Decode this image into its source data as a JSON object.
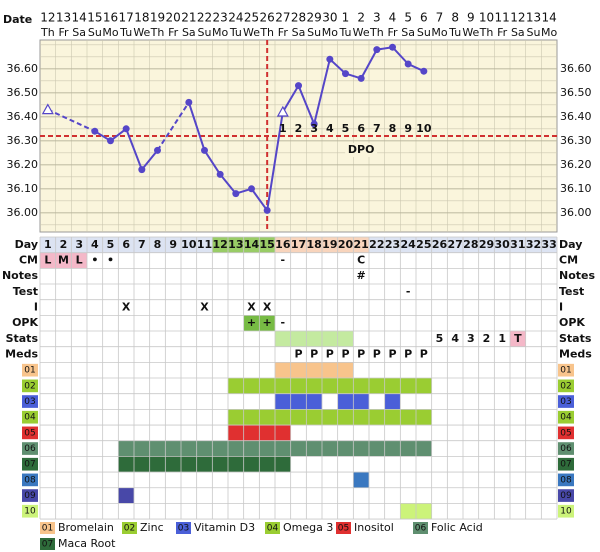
{
  "chart_data": {
    "type": "line",
    "date_label": "Date",
    "dates": [
      12,
      13,
      14,
      15,
      16,
      17,
      18,
      19,
      20,
      21,
      22,
      23,
      24,
      25,
      26,
      27,
      28,
      29,
      30,
      1,
      2,
      3,
      4,
      5,
      6,
      7,
      8,
      9,
      10,
      11,
      12,
      13,
      14
    ],
    "weekdays": [
      "Th",
      "Fr",
      "Sa",
      "Su",
      "Mo",
      "Tu",
      "We",
      "Th",
      "Fr",
      "Sa",
      "Su",
      "Mo",
      "Tu",
      "We",
      "Th",
      "Fr",
      "Sa",
      "Su",
      "Mo",
      "Tu",
      "We",
      "Th",
      "Fr",
      "Sa",
      "Su",
      "Mo",
      "Tu",
      "We",
      "Th",
      "Fr",
      "Sa",
      "Su",
      "Mo"
    ],
    "values": [
      36.43,
      null,
      null,
      36.34,
      36.3,
      36.35,
      36.18,
      36.26,
      null,
      36.46,
      36.26,
      36.16,
      36.08,
      36.1,
      36.01,
      36.42,
      36.53,
      36.37,
      36.64,
      36.58,
      36.56,
      36.68,
      36.69,
      36.62,
      36.59,
      null,
      null,
      null,
      null,
      null,
      null,
      null,
      null
    ],
    "markers": [
      "triangle",
      null,
      null,
      "circle",
      "circle",
      "circle",
      "circle",
      "circle",
      null,
      "circle",
      "circle",
      "circle",
      "circle",
      "circle",
      "circle",
      "triangle",
      "circle",
      "circle",
      "circle",
      "circle",
      "circle",
      "circle",
      "circle",
      "circle",
      "circle",
      null,
      null,
      null,
      null,
      null,
      null,
      null,
      null
    ],
    "color": "#5546c8",
    "background": "#faf5dc",
    "grid": true,
    "ylim": [
      35.92,
      36.72
    ],
    "yticks": [
      {
        "value": 36.0,
        "label": "36.00"
      },
      {
        "value": 36.1,
        "label": "36.10"
      },
      {
        "value": 36.2,
        "label": "36.20"
      },
      {
        "value": 36.3,
        "label": "36.30"
      },
      {
        "value": 36.4,
        "label": "36.40"
      },
      {
        "value": 36.5,
        "label": "36.50"
      },
      {
        "value": 36.6,
        "label": "36.60"
      }
    ],
    "minor_step": 0.05,
    "coverline": 36.32,
    "ovulation_day": 15,
    "line_color": "#d03030",
    "dpo_label": "DPO",
    "dpo": [
      {
        "day": 16,
        "text": 1
      },
      {
        "day": 17,
        "text": 2
      },
      {
        "day": 18,
        "text": 3
      },
      {
        "day": 19,
        "text": 4
      },
      {
        "day": 20,
        "text": 5
      },
      {
        "day": 21,
        "text": 6
      },
      {
        "day": 22,
        "text": 7
      },
      {
        "day": 23,
        "text": 8
      },
      {
        "day": 24,
        "text": 9
      },
      {
        "day": 25,
        "text": 10
      }
    ]
  },
  "grid": {
    "day_label": "Day",
    "days": [
      1,
      2,
      3,
      4,
      5,
      6,
      7,
      8,
      9,
      10,
      11,
      12,
      13,
      14,
      15,
      16,
      17,
      18,
      19,
      20,
      21,
      22,
      23,
      24,
      25,
      26,
      27,
      28,
      29,
      30,
      31,
      32,
      33
    ],
    "day_bg": "#dce3f2",
    "day_highlights": [
      {
        "days": [
          12,
          13,
          14,
          15
        ],
        "color": "#99cc66"
      },
      {
        "days": [
          16,
          17,
          18,
          19,
          20,
          21
        ],
        "color": "#f8d4bc"
      }
    ],
    "rows": [
      {
        "label": "CM",
        "entries": [
          {
            "day": 1,
            "text": "L",
            "bg": "#f4b8c8"
          },
          {
            "day": 2,
            "text": "M",
            "bg": "#f4b8c8"
          },
          {
            "day": 3,
            "text": "L",
            "bg": "#f4b8c8"
          },
          {
            "day": 4,
            "text": "•"
          },
          {
            "day": 5,
            "text": "•"
          },
          {
            "day": 16,
            "text": "-"
          },
          {
            "day": 21,
            "text": "C"
          }
        ]
      },
      {
        "label": "Notes",
        "entries": [
          {
            "day": 21,
            "text": "#"
          }
        ]
      },
      {
        "label": "Test",
        "entries": [
          {
            "day": 24,
            "text": "-"
          }
        ]
      },
      {
        "label": "I",
        "entries": [
          {
            "day": 6,
            "text": "X"
          },
          {
            "day": 11,
            "text": "X"
          },
          {
            "day": 14,
            "text": "X"
          },
          {
            "day": 15,
            "text": "X"
          }
        ]
      },
      {
        "label": "OPK",
        "entries": [
          {
            "day": 14,
            "text": "+",
            "bg": "#77bb44"
          },
          {
            "day": 15,
            "text": "+",
            "bg": "#77bb44"
          },
          {
            "day": 16,
            "text": "-"
          }
        ]
      },
      {
        "label": "Stats",
        "entries": [
          {
            "day": 16,
            "bg": "#c4eaa0"
          },
          {
            "day": 17,
            "bg": "#c4eaa0"
          },
          {
            "day": 18,
            "bg": "#c4eaa0"
          },
          {
            "day": 19,
            "bg": "#c4eaa0"
          },
          {
            "day": 20,
            "bg": "#c4eaa0"
          },
          {
            "day": 26,
            "text": 5
          },
          {
            "day": 27,
            "text": 4
          },
          {
            "day": 28,
            "text": 3
          },
          {
            "day": 29,
            "text": 2
          },
          {
            "day": 30,
            "text": 1
          },
          {
            "day": 31,
            "text": "T",
            "bg": "#f4b8c8"
          }
        ]
      },
      {
        "label": "Meds",
        "entries": [
          {
            "day": 17,
            "text": "P"
          },
          {
            "day": 18,
            "text": "P"
          },
          {
            "day": 19,
            "text": "P"
          },
          {
            "day": 20,
            "text": "P"
          },
          {
            "day": 21,
            "text": "P"
          },
          {
            "day": 22,
            "text": "P"
          },
          {
            "day": 23,
            "text": "P"
          },
          {
            "day": 24,
            "text": "P"
          },
          {
            "day": 25,
            "text": "P"
          }
        ]
      }
    ],
    "supplements": [
      {
        "code": "01",
        "name": "Bromelain",
        "color": "#f8c48c",
        "days": [
          16,
          17,
          18,
          19,
          20
        ]
      },
      {
        "code": "02",
        "name": "Zinc",
        "color": "#9acd32",
        "days": [
          13,
          14,
          15,
          16,
          17,
          18,
          19,
          20,
          21,
          22,
          23,
          24,
          25
        ]
      },
      {
        "code": "03",
        "name": "Vitamin D3",
        "color": "#4a5fd8",
        "days": [
          16,
          17,
          18,
          20,
          21,
          23
        ]
      },
      {
        "code": "04",
        "name": "Omega 3",
        "color": "#9acd32",
        "days": [
          13,
          14,
          15,
          16,
          17,
          18,
          19,
          20,
          21,
          22,
          23,
          24,
          25
        ]
      },
      {
        "code": "05",
        "name": "Inositol",
        "color": "#e03030",
        "days": [
          13,
          14,
          15,
          16
        ]
      },
      {
        "code": "06",
        "name": "Folic Acid",
        "color": "#5f8f70",
        "days": [
          6,
          7,
          8,
          9,
          10,
          11,
          12,
          13,
          14,
          15,
          16,
          17,
          18,
          19,
          20,
          21,
          22,
          23,
          24,
          25
        ]
      },
      {
        "code": "07",
        "name": "Maca Root",
        "color": "#2e6b3a",
        "days": [
          6,
          7,
          8,
          9,
          10,
          11,
          12,
          13,
          14,
          15,
          16
        ]
      },
      {
        "code": "08",
        "color": "#3a78c0",
        "days": [
          21
        ]
      },
      {
        "code": "09",
        "color": "#4848a8",
        "days": [
          6
        ]
      },
      {
        "code": "10",
        "color": "#ccf37a",
        "days": [
          24,
          25
        ]
      }
    ]
  }
}
